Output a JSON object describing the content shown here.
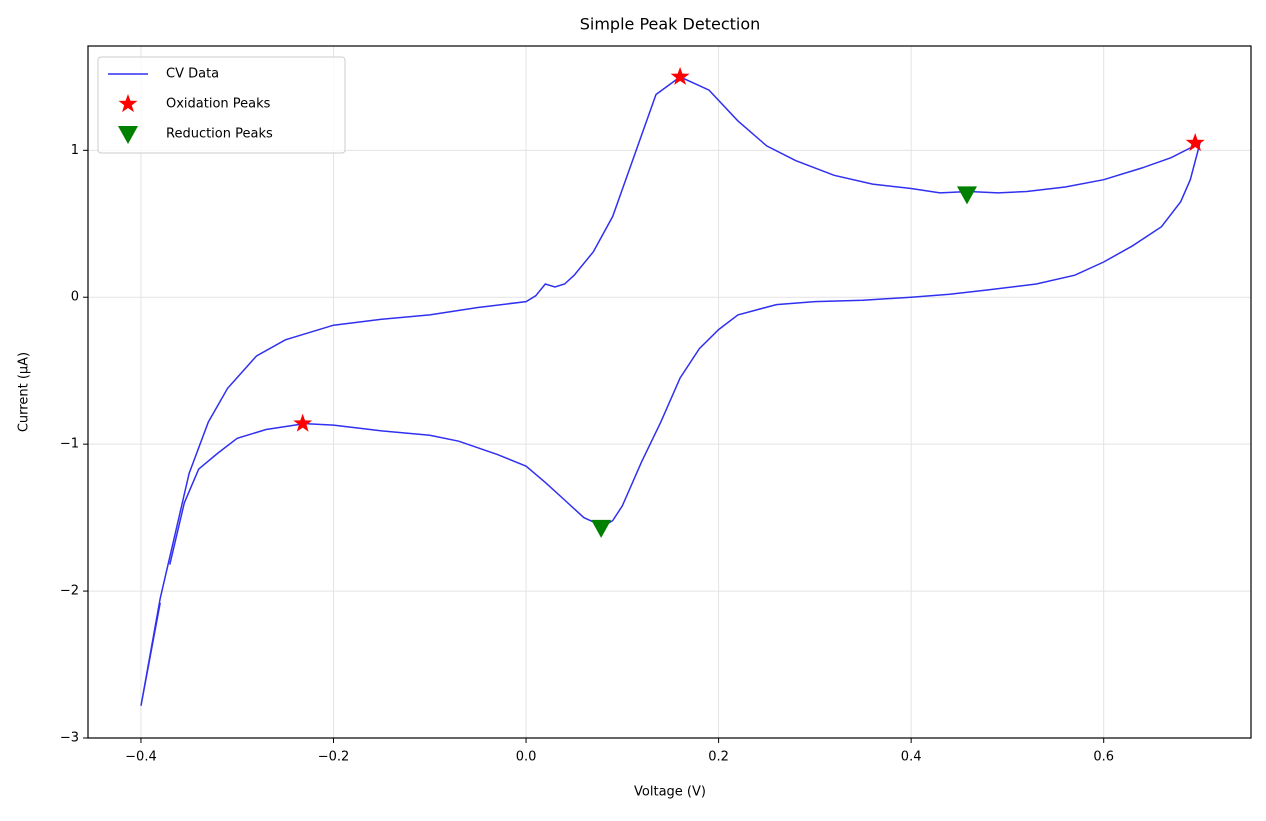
{
  "chart_data": {
    "type": "line",
    "title": "Simple Peak Detection",
    "x_label": "Voltage (V)",
    "y_label": "Current (μA)",
    "xlim": [
      -0.455,
      0.753
    ],
    "ylim": [
      -3.0,
      1.71
    ],
    "xticks": [
      {
        "value": -0.4,
        "label": "−0.4"
      },
      {
        "value": -0.2,
        "label": "−0.2"
      },
      {
        "value": 0,
        "label": "0.0"
      },
      {
        "value": 0.2,
        "label": "0.2"
      },
      {
        "value": 0.4,
        "label": "0.4"
      },
      {
        "value": 0.6,
        "label": "0.6"
      }
    ],
    "yticks": [
      {
        "value": -3,
        "label": "−3"
      },
      {
        "value": -2,
        "label": "−2"
      },
      {
        "value": -1,
        "label": "−1"
      },
      0,
      1
    ],
    "grid": true,
    "legend": "upper left",
    "series": [
      {
        "name": "CV Data",
        "color": "#3030f0",
        "marker": "line",
        "x": [
          -0.38,
          -0.4,
          -0.38,
          -0.35,
          -0.33,
          -0.31,
          -0.28,
          -0.25,
          -0.2,
          -0.15,
          -0.1,
          -0.05,
          0.0,
          0.01,
          0.02,
          0.03,
          0.04,
          0.05,
          0.07,
          0.09,
          0.11,
          0.135,
          0.16,
          0.19,
          0.22,
          0.25,
          0.28,
          0.32,
          0.36,
          0.4,
          0.43,
          0.46,
          0.49,
          0.52,
          0.56,
          0.6,
          0.64,
          0.67,
          0.7,
          0.69,
          0.68,
          0.66,
          0.63,
          0.6,
          0.57,
          0.53,
          0.48,
          0.44,
          0.4,
          0.35,
          0.3,
          0.26,
          0.22,
          0.2,
          0.18,
          0.16,
          0.14,
          0.12,
          0.1,
          0.09,
          0.08,
          0.06,
          0.04,
          0.02,
          0.0,
          -0.03,
          -0.07,
          -0.1,
          -0.15,
          -0.2,
          -0.23,
          -0.27,
          -0.3,
          -0.32,
          -0.34,
          -0.355,
          -0.37
        ],
        "values": [
          -2.08,
          -2.78,
          -2.05,
          -1.2,
          -0.85,
          -0.62,
          -0.4,
          -0.29,
          -0.19,
          -0.15,
          -0.12,
          -0.07,
          -0.03,
          0.01,
          0.09,
          0.07,
          0.09,
          0.15,
          0.31,
          0.55,
          0.92,
          1.38,
          1.5,
          1.41,
          1.2,
          1.03,
          0.93,
          0.83,
          0.77,
          0.74,
          0.71,
          0.72,
          0.71,
          0.72,
          0.75,
          0.8,
          0.88,
          0.95,
          1.05,
          0.8,
          0.65,
          0.48,
          0.35,
          0.24,
          0.15,
          0.09,
          0.05,
          0.02,
          0.0,
          -0.02,
          -0.03,
          -0.05,
          -0.12,
          -0.22,
          -0.35,
          -0.55,
          -0.85,
          -1.12,
          -1.42,
          -1.52,
          -1.56,
          -1.5,
          -1.38,
          -1.26,
          -1.15,
          -1.07,
          -0.98,
          -0.94,
          -0.91,
          -0.87,
          -0.86,
          -0.9,
          -0.96,
          -1.06,
          -1.17,
          -1.4,
          -1.82
        ]
      },
      {
        "name": "Oxidation Peaks",
        "color": "#ff0000",
        "marker": "star",
        "x": [
          -0.232,
          0.16,
          0.695
        ],
        "values": [
          -0.86,
          1.5,
          1.05
        ]
      },
      {
        "name": "Reduction Peaks",
        "color": "#008000",
        "marker": "triangle-down",
        "x": [
          0.078,
          0.458
        ],
        "values": [
          -1.57,
          0.7
        ]
      }
    ]
  }
}
